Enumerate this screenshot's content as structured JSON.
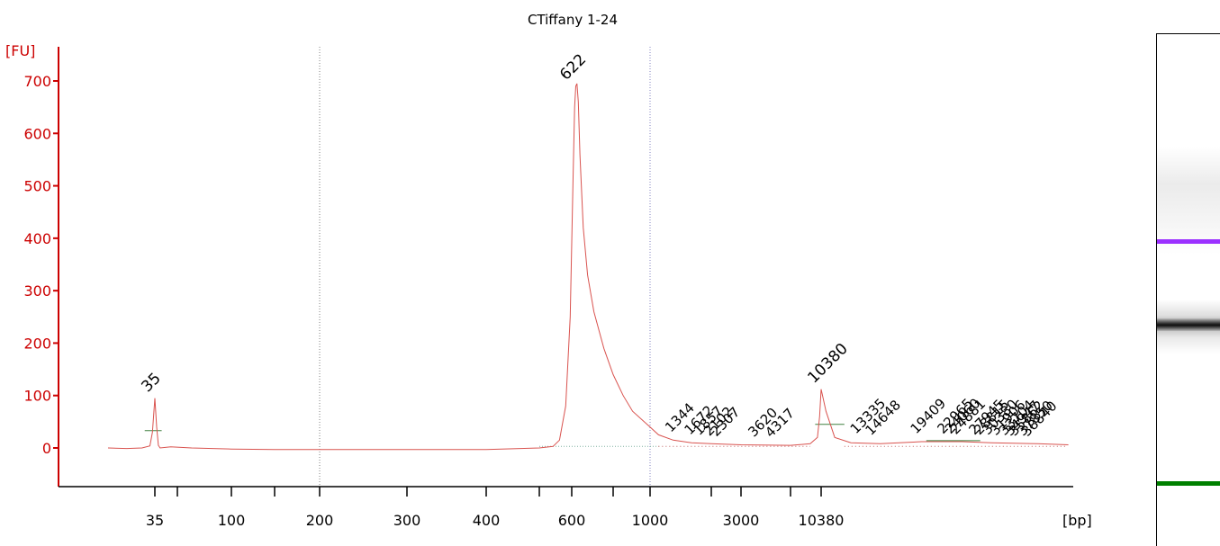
{
  "chart_data": {
    "type": "line",
    "title": "CTiffany 1-24",
    "y_unit": "[FU]",
    "x_unit": "[bp]",
    "ylim": [
      -70,
      760
    ],
    "y_ticks": [
      "0",
      "100",
      "200",
      "300",
      "400",
      "500",
      "600",
      "700"
    ],
    "x_ticks": [
      "35",
      "100",
      "200",
      "300",
      "400",
      "600",
      "1000",
      "3000",
      "10380"
    ],
    "gridlines_bp": [
      "200",
      "1000"
    ],
    "curve_color": "#d9534f",
    "series": [
      {
        "points": [
          [
            20,
            0
          ],
          [
            25,
            -1
          ],
          [
            30,
            0
          ],
          [
            33,
            4
          ],
          [
            34,
            30
          ],
          [
            35,
            95
          ],
          [
            36,
            40
          ],
          [
            37,
            5
          ],
          [
            38,
            0
          ],
          [
            45,
            2
          ],
          [
            60,
            0
          ],
          [
            100,
            -2
          ],
          [
            150,
            -3
          ],
          [
            200,
            -3
          ],
          [
            300,
            -3
          ],
          [
            400,
            -3
          ],
          [
            500,
            0
          ],
          [
            540,
            3
          ],
          [
            560,
            15
          ],
          [
            580,
            80
          ],
          [
            595,
            250
          ],
          [
            605,
            500
          ],
          [
            612,
            650
          ],
          [
            617,
            690
          ],
          [
            622,
            695
          ],
          [
            628,
            660
          ],
          [
            635,
            560
          ],
          [
            650,
            420
          ],
          [
            670,
            330
          ],
          [
            700,
            260
          ],
          [
            750,
            190
          ],
          [
            800,
            140
          ],
          [
            850,
            100
          ],
          [
            900,
            70
          ],
          [
            1000,
            40
          ],
          [
            1100,
            25
          ],
          [
            1300,
            15
          ],
          [
            1600,
            10
          ],
          [
            2000,
            8
          ],
          [
            3000,
            6
          ],
          [
            5000,
            5
          ],
          [
            8000,
            8
          ],
          [
            9500,
            20
          ],
          [
            10000,
            60
          ],
          [
            10380,
            112
          ],
          [
            10700,
            70
          ],
          [
            11300,
            20
          ],
          [
            12500,
            10
          ],
          [
            15000,
            8
          ],
          [
            19409,
            12
          ],
          [
            25000,
            12
          ],
          [
            30000,
            10
          ],
          [
            40000,
            8
          ],
          [
            48500,
            6
          ]
        ]
      }
    ],
    "markers": [
      {
        "label": "35",
        "bp": 35,
        "fu": 95,
        "color": "#008000",
        "role": "lower marker"
      },
      {
        "label": "10380",
        "bp": 10380,
        "fu": 112,
        "color": "#9b30ff",
        "role": "upper marker"
      }
    ],
    "peak_labels": [
      {
        "label": "622",
        "bp": 622,
        "fu": 695
      },
      {
        "label": "1344",
        "bp": 1344,
        "fu": 15
      },
      {
        "label": "1672",
        "bp": 1672,
        "fu": 10
      },
      {
        "label": "1857",
        "bp": 1857,
        "fu": 9
      },
      {
        "label": "2102",
        "bp": 2102,
        "fu": 8
      },
      {
        "label": "2307",
        "bp": 2307,
        "fu": 7
      },
      {
        "label": "3620",
        "bp": 3620,
        "fu": 6
      },
      {
        "label": "4317",
        "bp": 4317,
        "fu": 5
      },
      {
        "label": "13335",
        "bp": 13335,
        "fu": 12
      },
      {
        "label": "14648",
        "bp": 14648,
        "fu": 9
      },
      {
        "label": "19409",
        "bp": 19409,
        "fu": 12
      },
      {
        "label": "22965",
        "bp": 22965,
        "fu": 12
      },
      {
        "label": "24060",
        "bp": 24060,
        "fu": 12
      },
      {
        "label": "24881",
        "bp": 24881,
        "fu": 11
      },
      {
        "label": "27945",
        "bp": 27945,
        "fu": 10
      },
      {
        "label": "28815",
        "bp": 28815,
        "fu": 10
      },
      {
        "label": "30380",
        "bp": 30380,
        "fu": 10
      },
      {
        "label": "31906",
        "bp": 31906,
        "fu": 9
      },
      {
        "label": "33704",
        "bp": 33704,
        "fu": 9
      },
      {
        "label": "34947",
        "bp": 34947,
        "fu": 8
      },
      {
        "label": "35862",
        "bp": 35862,
        "fu": 8
      },
      {
        "label": "37850",
        "bp": 37850,
        "fu": 8
      },
      {
        "label": "38840",
        "bp": 38840,
        "fu": 7
      }
    ]
  },
  "gel": {
    "upper_marker_color": "#9b30ff",
    "lower_marker_color": "#008000"
  }
}
